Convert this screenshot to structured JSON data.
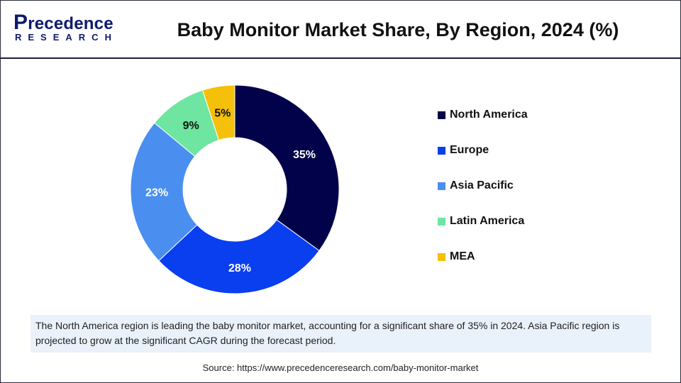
{
  "logo": {
    "line1_cap": "P",
    "line1_rest": "recedence",
    "line2": "RESEARCH"
  },
  "colors": {
    "brand": "#0d1b6e",
    "North America": "#02024a",
    "Europe": "#0a3ff0",
    "Asia Pacific": "#4a8ff0",
    "Latin America": "#6ee5a0",
    "MEA": "#f5c00a"
  },
  "chart_data": {
    "type": "pie",
    "donut": true,
    "title": "Baby Monitor Market Share, By Region, 2024 (%)",
    "legend_position": "right",
    "slices": [
      {
        "label": "North America",
        "value": 35,
        "display": "35%",
        "color": "#02024a",
        "label_color": "#ffffff"
      },
      {
        "label": "Europe",
        "value": 28,
        "display": "28%",
        "color": "#0a3ff0",
        "label_color": "#ffffff"
      },
      {
        "label": "Asia Pacific",
        "value": 23,
        "display": "23%",
        "color": "#4a8ff0",
        "label_color": "#ffffff"
      },
      {
        "label": "Latin America",
        "value": 9,
        "display": "9%",
        "color": "#6ee5a0",
        "label_color": "#111111"
      },
      {
        "label": "MEA",
        "value": 5,
        "display": "5%",
        "color": "#f5c00a",
        "label_color": "#111111"
      }
    ]
  },
  "note": "The North America region is leading the baby monitor market, accounting for a significant share of 35% in 2024. Asia Pacific region is projected to grow at the significant CAGR during the forecast period.",
  "source": "Source: https://www.precedenceresearch.com/baby-monitor-market"
}
